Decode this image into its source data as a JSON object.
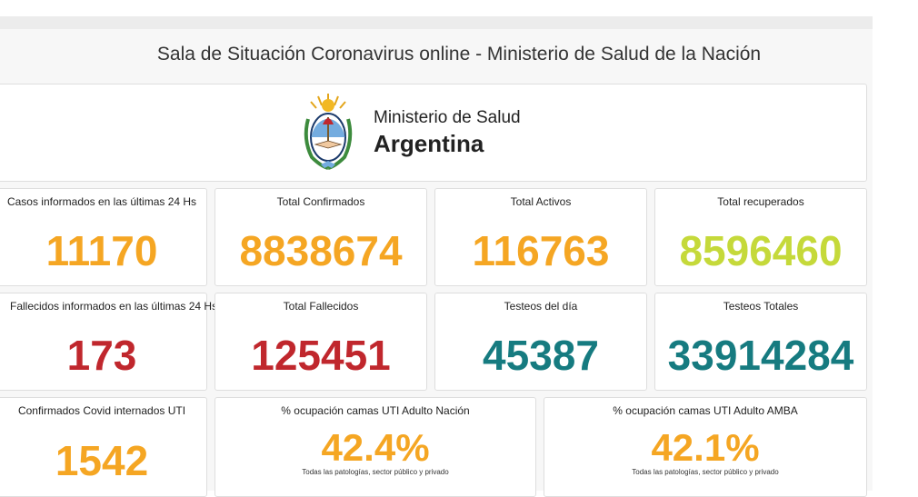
{
  "header": {
    "title": "Sala de Situación Coronavirus online - Ministerio de Salud de la Nación"
  },
  "logo": {
    "line1": "Ministerio de Salud",
    "line2": "Argentina",
    "emblem": "argentina-coat-of-arms"
  },
  "cards": {
    "casos24": {
      "label": "Casos informados en las últimas 24 Hs",
      "value": "11170"
    },
    "confirmados": {
      "label": "Total Confirmados",
      "value": "8838674"
    },
    "activos": {
      "label": "Total Activos",
      "value": "116763"
    },
    "recuperados": {
      "label": "Total recuperados",
      "value": "8596460"
    },
    "fallecidos24": {
      "label": "Fallecidos informados en las últimas 24 Hs",
      "value": "173"
    },
    "fallecidos": {
      "label": "Total Fallecidos",
      "value": "125451"
    },
    "testeosDia": {
      "label": "Testeos del día",
      "value": "45387"
    },
    "testeosTotales": {
      "label": "Testeos Totales",
      "value": "33914284"
    },
    "uti": {
      "label": "Confirmados Covid internados UTI",
      "value": "1542"
    },
    "ocupNacion": {
      "label": "% ocupación camas UTI Adulto Nación",
      "value": "42.4%",
      "note": "Todas las patologías, sector público y privado"
    },
    "ocupAmba": {
      "label": "% ocupación camas UTI Adulto AMBA",
      "value": "42.1%",
      "note": "Todas las patologías, sector público y privado"
    }
  },
  "colors": {
    "orange": "#f5a623",
    "lime": "#c5d93a",
    "red": "#c0272d",
    "teal": "#167b80"
  }
}
